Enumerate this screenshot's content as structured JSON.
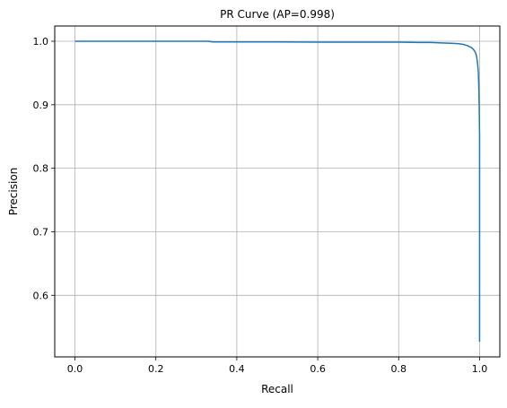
{
  "chart_data": {
    "type": "line",
    "title": "PR Curve (AP=0.998)",
    "xlabel": "Recall",
    "ylabel": "Precision",
    "xlim": [
      -0.05,
      1.05
    ],
    "ylim": [
      0.503,
      1.024
    ],
    "xticks": [
      0.0,
      0.2,
      0.4,
      0.6,
      0.8,
      1.0
    ],
    "xtick_labels": [
      "0.0",
      "0.2",
      "0.4",
      "0.6",
      "0.8",
      "1.0"
    ],
    "yticks": [
      0.6,
      0.7,
      0.8,
      0.9,
      1.0
    ],
    "ytick_labels": [
      "0.6",
      "0.7",
      "0.8",
      "0.9",
      "1.0"
    ],
    "grid": true,
    "legend": null,
    "series": [
      {
        "color": "#1f77b4",
        "x": [
          0.0,
          0.1,
          0.2,
          0.3,
          0.33,
          0.34,
          0.4,
          0.5,
          0.6,
          0.7,
          0.8,
          0.85,
          0.88,
          0.9,
          0.92,
          0.94,
          0.95,
          0.96,
          0.97,
          0.98,
          0.985,
          0.99,
          0.993,
          0.995,
          0.997,
          0.998,
          0.999,
          1.0,
          1.0,
          1.0,
          1.0,
          1.0,
          1.0
        ],
        "y": [
          1.0,
          1.0,
          1.0,
          1.0,
          1.0,
          0.999,
          0.999,
          0.999,
          0.9985,
          0.9985,
          0.9985,
          0.998,
          0.998,
          0.9975,
          0.997,
          0.9965,
          0.996,
          0.995,
          0.993,
          0.99,
          0.987,
          0.982,
          0.975,
          0.965,
          0.95,
          0.93,
          0.9,
          0.85,
          0.75,
          0.65,
          0.6,
          0.55,
          0.527
        ]
      }
    ]
  }
}
